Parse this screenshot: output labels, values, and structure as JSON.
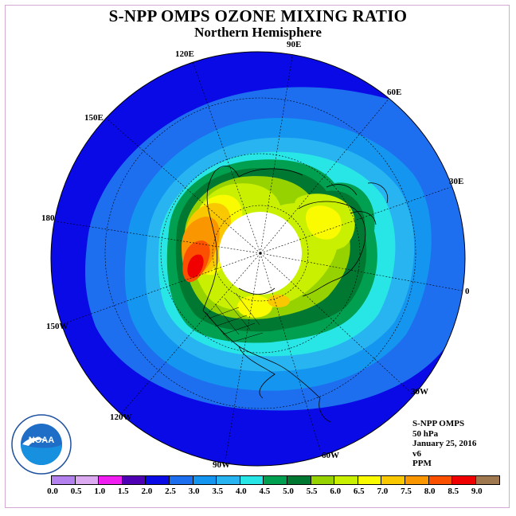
{
  "title": "S-NPP OMPS OZONE MIXING RATIO",
  "subtitle": "Northern Hemisphere",
  "longitude_labels": [
    "90E",
    "60E",
    "30E",
    "0",
    "30W",
    "60W",
    "90W",
    "120W",
    "150W",
    "180",
    "150E",
    "120E"
  ],
  "info": {
    "instrument": "S-NPP OMPS",
    "level": "50 hPa",
    "date": "January 25, 2016",
    "version": "v6",
    "units": "PPM"
  },
  "logo_text": "NOAA",
  "colorbar": {
    "ticks": [
      "0.0",
      "0.5",
      "1.0",
      "1.5",
      "2.0",
      "2.5",
      "3.0",
      "3.5",
      "4.0",
      "4.5",
      "5.0",
      "5.5",
      "6.0",
      "6.5",
      "7.0",
      "7.5",
      "8.0",
      "8.5",
      "9.0"
    ],
    "colors": [
      "#b482ee",
      "#dcaaf0",
      "#f01ef0",
      "#5000b4",
      "#0a0ae6",
      "#1e6ef0",
      "#1496f0",
      "#28b4f0",
      "#28e6e6",
      "#00a050",
      "#007832",
      "#96d200",
      "#c8f000",
      "#fafa00",
      "#fac800",
      "#fa9600",
      "#fa5000",
      "#f00000",
      "#a07850"
    ]
  }
}
